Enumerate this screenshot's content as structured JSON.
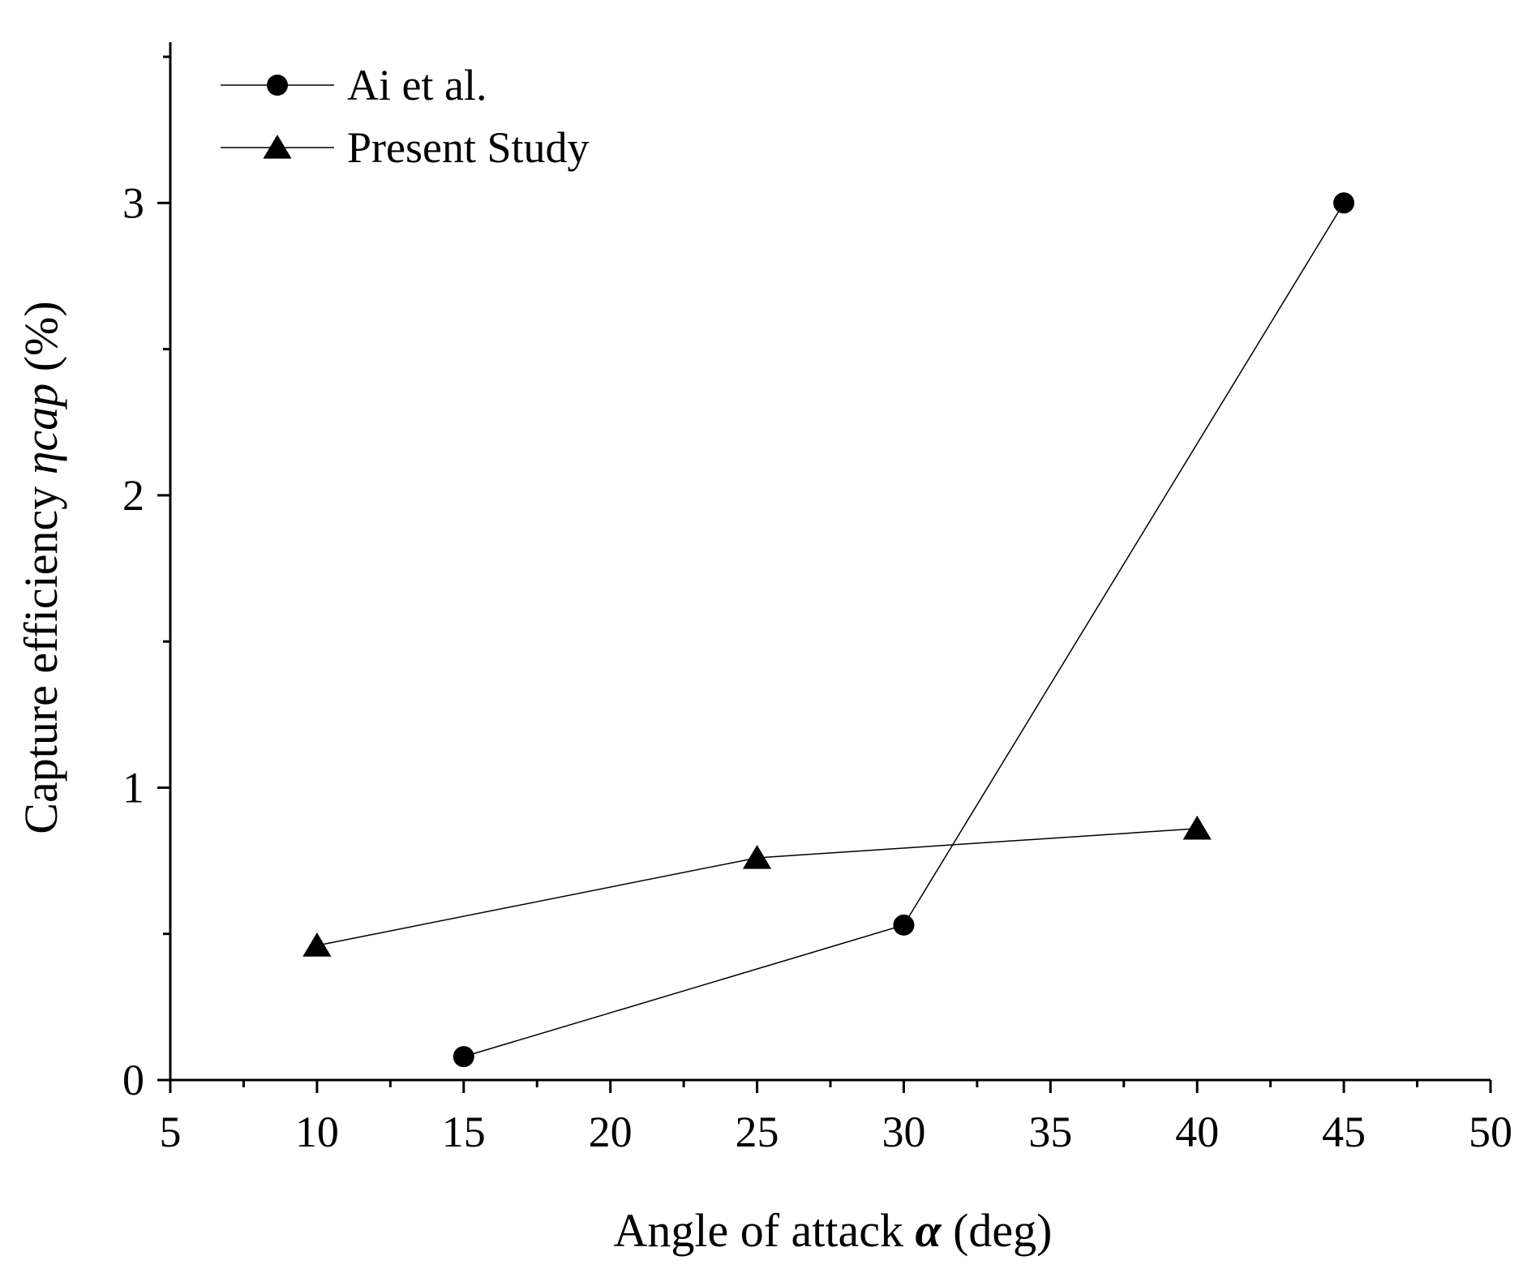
{
  "chart_data": {
    "type": "line",
    "title": "",
    "xlabel": {
      "prefix": "Angle of attack ",
      "symbol": "α",
      "suffix": " (deg)"
    },
    "ylabel": {
      "prefix": "Capture efficiency ",
      "symbol": "η",
      "subscript": "cap",
      "suffix": " (%)"
    },
    "xlim": [
      5,
      50
    ],
    "ylim": [
      0,
      3.55
    ],
    "xticks": [
      "5",
      "10",
      "15",
      "20",
      "25",
      "30",
      "35",
      "40",
      "45",
      "50"
    ],
    "yticks": [
      "0",
      "1",
      "2",
      "3"
    ],
    "grid": false,
    "legend_position": "top-left",
    "series": [
      {
        "name": "Ai et al.",
        "marker": "circle",
        "color": "#000000",
        "x": [
          15,
          30,
          45
        ],
        "y": [
          0.08,
          0.53,
          3.0
        ]
      },
      {
        "name": "Present Study",
        "marker": "triangle",
        "color": "#000000",
        "x": [
          10,
          25,
          40
        ],
        "y": [
          0.46,
          0.76,
          0.86
        ]
      }
    ]
  }
}
